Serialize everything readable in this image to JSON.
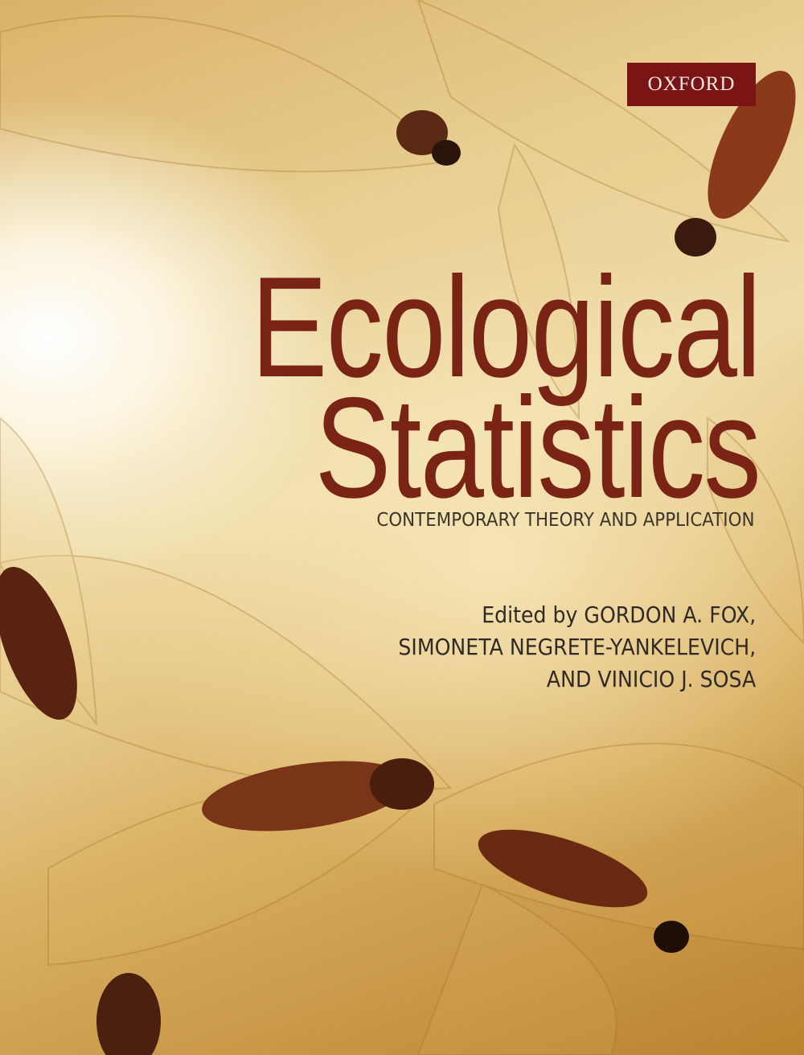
{
  "publisher": "OXFORD",
  "title": {
    "line1": "Ecological",
    "line2": "Statistics"
  },
  "subtitle": "CONTEMPORARY THEORY AND APPLICATION",
  "editors": [
    "Edited by GORDON A. FOX,",
    "SIMONETA NEGRETE-YANKELEVICH,",
    "AND VINICIO J. SOSA"
  ],
  "colors": {
    "title": "#7a2416",
    "publisher_box": "#7b1414",
    "background": "#e8cf93"
  }
}
